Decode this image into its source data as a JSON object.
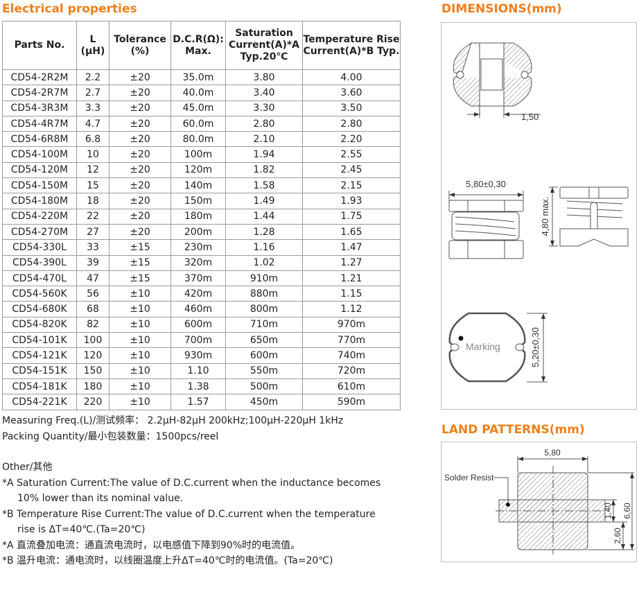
{
  "electrical": {
    "title": "Electrical properties",
    "headers": [
      "Parts  No.",
      "L\n(µH)",
      "Tolerance\n(%)",
      "D.C.R(Ω):\nMax.",
      "Saturation\nCurrent(A)*A\nTyp.20℃",
      "Temperature Rise\nCurrent(A)*B  Typ."
    ],
    "rows": [
      [
        "CD54-2R2M",
        "2.2",
        "±20",
        "35.0m",
        "3.80",
        "4.00"
      ],
      [
        "CD54-2R7M",
        "2.7",
        "±20",
        "40.0m",
        "3.40",
        "3.60"
      ],
      [
        "CD54-3R3M",
        "3.3",
        "±20",
        "45.0m",
        "3.30",
        "3.50"
      ],
      [
        "CD54-4R7M",
        "4.7",
        "±20",
        "60.0m",
        "2.80",
        "2.80"
      ],
      [
        "CD54-6R8M",
        "6.8",
        "±20",
        "80.0m",
        "2.10",
        "2.20"
      ],
      [
        "CD54-100M",
        "10",
        "±20",
        "100m",
        "1.94",
        "2.55"
      ],
      [
        "CD54-120M",
        "12",
        "±20",
        "120m",
        "1.82",
        "2.45"
      ],
      [
        "CD54-150M",
        "15",
        "±20",
        "140m",
        "1.58",
        "2.15"
      ],
      [
        "CD54-180M",
        "18",
        "±20",
        "150m",
        "1.49",
        "1.93"
      ],
      [
        "CD54-220M",
        "22",
        "±20",
        "180m",
        "1.44",
        "1.75"
      ],
      [
        "CD54-270M",
        "27",
        "±20",
        "200m",
        "1.28",
        "1.65"
      ],
      [
        "CD54-330L",
        "33",
        "±15",
        "230m",
        "1.16",
        "1.47"
      ],
      [
        "CD54-390L",
        "39",
        "±15",
        "320m",
        "1.02",
        "1.27"
      ],
      [
        "CD54-470L",
        "47",
        "±15",
        "370m",
        "910m",
        "1.21"
      ],
      [
        "CD54-560K",
        "56",
        "±10",
        "420m",
        "880m",
        "1.15"
      ],
      [
        "CD54-680K",
        "68",
        "±10",
        "460m",
        "800m",
        "1.12"
      ],
      [
        "CD54-820K",
        "82",
        "±10",
        "600m",
        "710m",
        "970m"
      ],
      [
        "CD54-101K",
        "100",
        "±10",
        "700m",
        "650m",
        "770m"
      ],
      [
        "CD54-121K",
        "120",
        "±10",
        "930m",
        "600m",
        "740m"
      ],
      [
        "CD54-151K",
        "150",
        "±10",
        "1.10",
        "550m",
        "720m"
      ],
      [
        "CD54-181K",
        "180",
        "±10",
        "1.38",
        "500m",
        "610m"
      ],
      [
        "CD54-221K",
        "220",
        "±10",
        "1.57",
        "450m",
        "590m"
      ]
    ]
  },
  "notes": {
    "measuring": "Measuring Freq.(L)/测试频率：  2.2µH-82µH  200kHz;100µH-220µH  1kHz",
    "packing": "Packing Quantity/最小包装数量：1500pcs/reel",
    "other": "Other/其他",
    "a_en_1": "*A  Saturation Current:The value of D.C.current when the inductance becomes",
    "a_en_2": "10% lower than its nominal value.",
    "b_en_1": "*B  Temperature Rise Current:The value of D.C.current when the temperature",
    "b_en_2": "rise is ΔT=40℃.(Ta=20℃)",
    "a_cn": "*A   直流叠加电流：通直流电流时，以电感值下降到90%时的电流值。",
    "b_cn": "*B   温升电流：通电流时，以线圈温度上升ΔT=40℃时的电流值。(Ta=20℃)"
  },
  "dimensions": {
    "title": "DIMENSIONS(mm)",
    "dim_gap": "1,50",
    "dim_width": "5,80±0,30",
    "dim_height": "4,80 max.",
    "dim_depth": "5,20±0,30",
    "marking": "Marking"
  },
  "land": {
    "title": "LAND PATTERNS(mm)",
    "solder_resist": "Solder Resist",
    "dim_width": "5,80",
    "dim_strip": "1,40",
    "dim_total": "6,60",
    "dim_pad": "2,60"
  },
  "colors": {
    "accent": "#f07f1a",
    "border": "#9a9a9a"
  }
}
